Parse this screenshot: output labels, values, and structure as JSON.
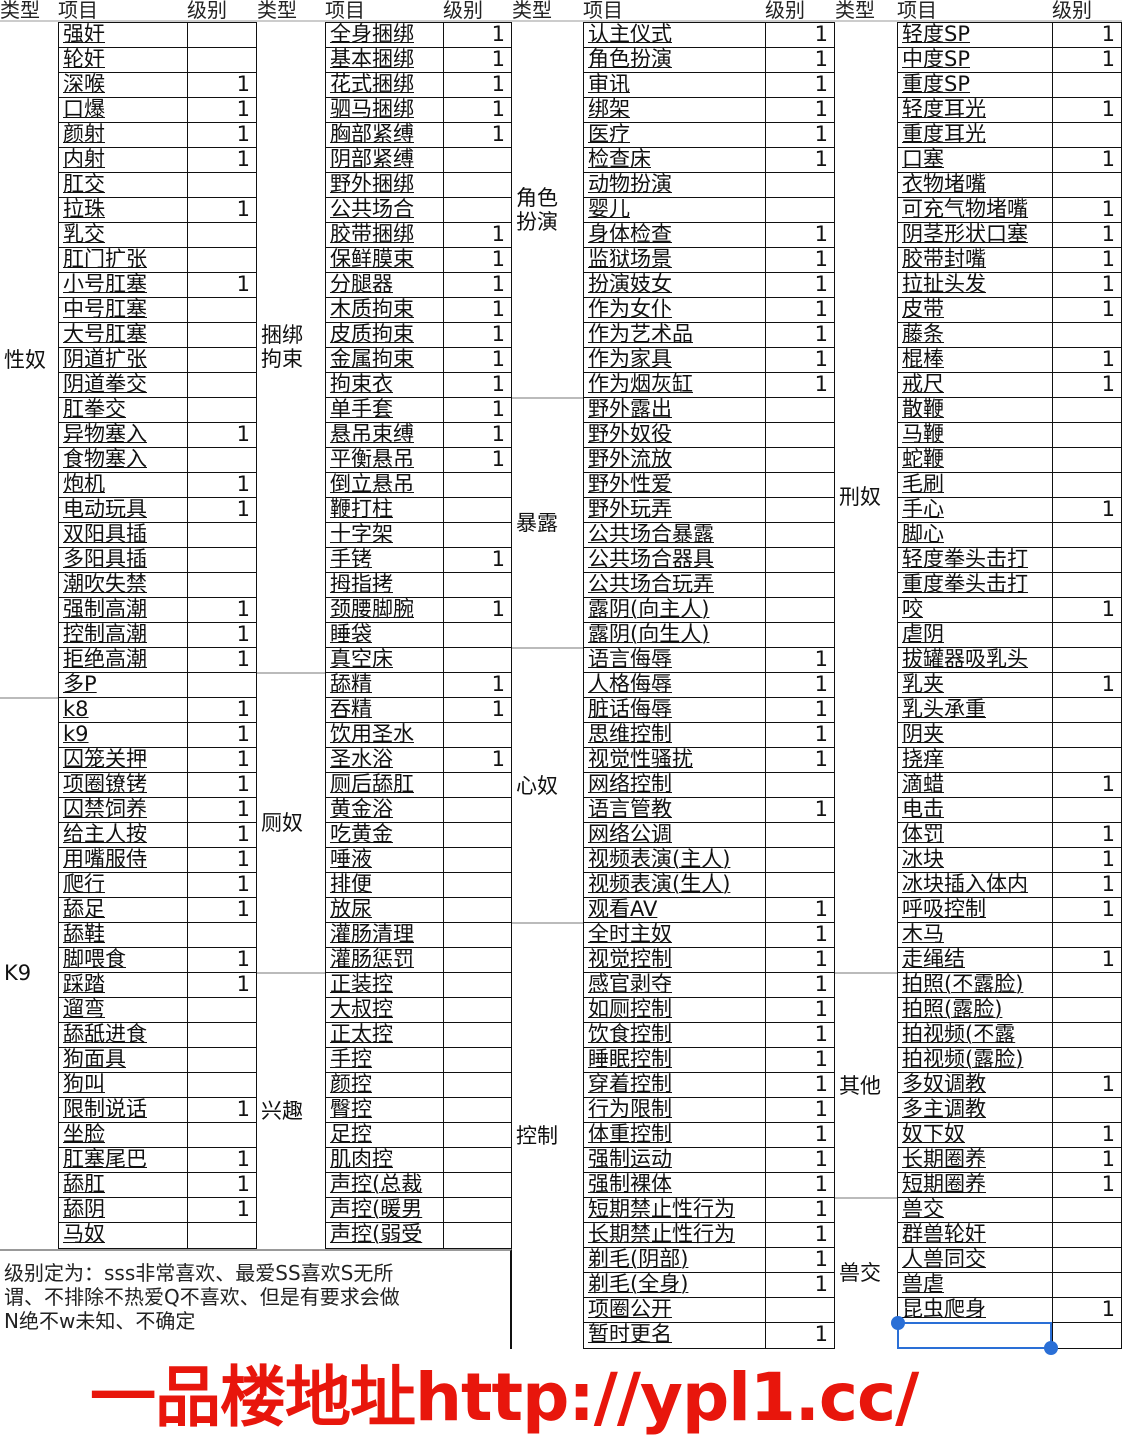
{
  "headers": {
    "type": "类型",
    "item": "项目",
    "level": "级别"
  },
  "groups": [
    {
      "categories": [
        {
          "type": "性奴",
          "items": [
            [
              "强奸",
              ""
            ],
            [
              "轮奸",
              ""
            ],
            [
              "深喉",
              "1"
            ],
            [
              "口爆",
              "1"
            ],
            [
              "颜射",
              "1"
            ],
            [
              "内射",
              "1"
            ],
            [
              "肛交",
              ""
            ],
            [
              "拉珠",
              "1"
            ],
            [
              "乳交",
              ""
            ],
            [
              "肛门扩张",
              ""
            ],
            [
              "小号肛塞",
              "1"
            ],
            [
              "中号肛塞",
              ""
            ],
            [
              "大号肛塞",
              ""
            ],
            [
              "阴道扩张",
              ""
            ],
            [
              "阴道拳交",
              ""
            ],
            [
              "肛拳交",
              ""
            ],
            [
              "异物塞入",
              "1"
            ],
            [
              "食物塞入",
              ""
            ],
            [
              "炮机",
              "1"
            ],
            [
              "电动玩具",
              "1"
            ],
            [
              "双阳具插",
              ""
            ],
            [
              "多阳具插",
              ""
            ],
            [
              "潮吹失禁",
              ""
            ],
            [
              "强制高潮",
              "1"
            ],
            [
              "控制高潮",
              "1"
            ],
            [
              "拒绝高潮",
              "1"
            ],
            [
              "多P",
              ""
            ]
          ]
        },
        {
          "type": "K9",
          "items": [
            [
              "k8",
              "1"
            ],
            [
              "k9",
              "1"
            ],
            [
              "囚笼关押",
              "1"
            ],
            [
              "项圈镣铐",
              "1"
            ],
            [
              "囚禁饲养",
              "1"
            ],
            [
              "给主人按",
              "1"
            ],
            [
              "用嘴服侍",
              "1"
            ],
            [
              "爬行",
              "1"
            ],
            [
              "舔足",
              "1"
            ],
            [
              "舔鞋",
              ""
            ],
            [
              "脚喂食",
              "1"
            ],
            [
              "踩踏",
              "1"
            ],
            [
              "遛弯",
              ""
            ],
            [
              "舔舐进食",
              ""
            ],
            [
              "狗面具",
              ""
            ],
            [
              "狗叫",
              ""
            ],
            [
              "限制说话",
              "1"
            ],
            [
              "坐脸",
              ""
            ],
            [
              "肛塞尾巴",
              "1"
            ],
            [
              "舔肛",
              "1"
            ],
            [
              "舔阴",
              "1"
            ],
            [
              "马奴",
              ""
            ]
          ]
        }
      ]
    },
    {
      "categories": [
        {
          "type": "捆绑拘束",
          "items": [
            [
              "全身捆绑",
              "1"
            ],
            [
              "基本捆绑",
              "1"
            ],
            [
              "花式捆绑",
              "1"
            ],
            [
              "驷马捆绑",
              "1"
            ],
            [
              "胸部紧缚",
              "1"
            ],
            [
              "阴部紧缚",
              ""
            ],
            [
              "野外捆绑",
              ""
            ],
            [
              "公共场合",
              ""
            ],
            [
              "胶带捆绑",
              "1"
            ],
            [
              "保鲜膜束",
              "1"
            ],
            [
              "分腿器",
              "1"
            ],
            [
              "木质拘束",
              "1"
            ],
            [
              "皮质拘束",
              "1"
            ],
            [
              "金属拘束",
              "1"
            ],
            [
              "拘束衣",
              "1"
            ],
            [
              "单手套",
              "1"
            ],
            [
              "悬吊束缚",
              "1"
            ],
            [
              "平衡悬吊",
              "1"
            ],
            [
              "倒立悬吊",
              ""
            ],
            [
              "鞭打柱",
              ""
            ],
            [
              "十字架",
              ""
            ],
            [
              "手铐",
              "1"
            ],
            [
              "拇指拷",
              ""
            ],
            [
              "颈腰脚腕",
              "1"
            ],
            [
              "睡袋",
              ""
            ],
            [
              "真空床",
              ""
            ]
          ]
        },
        {
          "type": "厕奴",
          "items": [
            [
              "舔精",
              "1"
            ],
            [
              "吞精",
              "1"
            ],
            [
              "饮用圣水",
              ""
            ],
            [
              "圣水浴",
              "1"
            ],
            [
              "厕后舔肛",
              ""
            ],
            [
              "黄金浴",
              ""
            ],
            [
              "吃黄金",
              ""
            ],
            [
              "唾液",
              ""
            ],
            [
              "排便",
              ""
            ],
            [
              "放尿",
              ""
            ],
            [
              "灌肠清理",
              ""
            ],
            [
              "灌肠惩罚",
              ""
            ]
          ]
        },
        {
          "type": "兴趣",
          "items": [
            [
              "正装控",
              ""
            ],
            [
              "大叔控",
              ""
            ],
            [
              "正太控",
              ""
            ],
            [
              "手控",
              ""
            ],
            [
              "颜控",
              ""
            ],
            [
              "臀控",
              ""
            ],
            [
              "足控",
              ""
            ],
            [
              "肌肉控",
              ""
            ],
            [
              "声控(总裁",
              ""
            ],
            [
              "声控(暖男",
              ""
            ],
            [
              "声控(弱受",
              ""
            ]
          ]
        }
      ]
    },
    {
      "categories": [
        {
          "type": "角色扮演",
          "items": [
            [
              "认主仪式",
              "1"
            ],
            [
              "角色扮演",
              "1"
            ],
            [
              "审讯",
              "1"
            ],
            [
              "绑架",
              "1"
            ],
            [
              "医疗",
              "1"
            ],
            [
              "检查床",
              "1"
            ],
            [
              "动物扮演",
              ""
            ],
            [
              "婴儿",
              ""
            ],
            [
              "身体检查",
              "1"
            ],
            [
              "监狱场景",
              "1"
            ],
            [
              "扮演妓女",
              "1"
            ],
            [
              "作为女仆",
              "1"
            ],
            [
              "作为艺术品",
              "1"
            ],
            [
              "作为家具",
              "1"
            ],
            [
              "作为烟灰缸",
              "1"
            ]
          ]
        },
        {
          "type": "暴露",
          "items": [
            [
              "野外露出",
              ""
            ],
            [
              "野外奴役",
              ""
            ],
            [
              "野外流放",
              ""
            ],
            [
              "野外性爱",
              ""
            ],
            [
              "野外玩弄",
              ""
            ],
            [
              "公共场合暴露",
              ""
            ],
            [
              "公共场合器具",
              ""
            ],
            [
              "公共场合玩弄",
              ""
            ],
            [
              "露阴(向主人)",
              ""
            ],
            [
              "露阴(向生人)",
              ""
            ]
          ]
        },
        {
          "type": "心奴",
          "items": [
            [
              "语言侮辱",
              "1"
            ],
            [
              "人格侮辱",
              "1"
            ],
            [
              "脏话侮辱",
              "1"
            ],
            [
              "思维控制",
              "1"
            ],
            [
              "视觉性骚扰",
              "1"
            ],
            [
              "网络控制",
              ""
            ],
            [
              "语言管教",
              "1"
            ],
            [
              "网络公调",
              ""
            ],
            [
              "视频表演(主人)",
              ""
            ],
            [
              "视频表演(生人)",
              ""
            ],
            [
              "观看AV",
              "1"
            ]
          ]
        },
        {
          "type": "控制",
          "items": [
            [
              "全时主奴",
              "1"
            ],
            [
              "视觉控制",
              "1"
            ],
            [
              "感官剥夺",
              "1"
            ],
            [
              "如厕控制",
              "1"
            ],
            [
              "饮食控制",
              "1"
            ],
            [
              "睡眠控制",
              "1"
            ],
            [
              "穿着控制",
              "1"
            ],
            [
              "行为限制",
              "1"
            ],
            [
              "体重控制",
              "1"
            ],
            [
              "强制运动",
              "1"
            ],
            [
              "强制裸体",
              "1"
            ],
            [
              "短期禁止性行为",
              "1"
            ],
            [
              "长期禁止性行为",
              "1"
            ],
            [
              "剃毛(阴部)",
              "1"
            ],
            [
              "剃毛(全身)",
              "1"
            ],
            [
              "项圈公开",
              ""
            ],
            [
              "暂时更名",
              "1"
            ]
          ]
        }
      ]
    },
    {
      "categories": [
        {
          "type": "刑奴",
          "items": [
            [
              "轻度SP",
              "1"
            ],
            [
              "中度SP",
              "1"
            ],
            [
              "重度SP",
              ""
            ],
            [
              "轻度耳光",
              "1"
            ],
            [
              "重度耳光",
              ""
            ],
            [
              "口塞",
              "1"
            ],
            [
              "衣物堵嘴",
              ""
            ],
            [
              "可充气物堵嘴",
              "1"
            ],
            [
              "阴茎形状口塞",
              "1"
            ],
            [
              "胶带封嘴",
              "1"
            ],
            [
              "拉扯头发",
              "1"
            ],
            [
              "皮带",
              "1"
            ],
            [
              "藤条",
              ""
            ],
            [
              "棍棒",
              "1"
            ],
            [
              "戒尺",
              "1"
            ],
            [
              "散鞭",
              ""
            ],
            [
              "马鞭",
              ""
            ],
            [
              "蛇鞭",
              ""
            ],
            [
              "毛刷",
              ""
            ],
            [
              "手心",
              "1"
            ],
            [
              "脚心",
              ""
            ],
            [
              "轻度拳头击打",
              ""
            ],
            [
              "重度拳头击打",
              ""
            ],
            [
              "咬",
              "1"
            ],
            [
              "虐阴",
              ""
            ],
            [
              "拔罐器吸乳头",
              ""
            ],
            [
              "乳夹",
              "1"
            ],
            [
              "乳头承重",
              ""
            ],
            [
              "阴夹",
              ""
            ],
            [
              "挠痒",
              ""
            ],
            [
              "滴蜡",
              "1"
            ],
            [
              "电击",
              ""
            ],
            [
              "体罚",
              "1"
            ],
            [
              "冰块",
              "1"
            ],
            [
              "冰块插入体内",
              "1"
            ],
            [
              "呼吸控制",
              "1"
            ],
            [
              "木马",
              ""
            ],
            [
              "走绳结",
              "1"
            ]
          ]
        },
        {
          "type": "其他",
          "items": [
            [
              "拍照(不露脸)",
              ""
            ],
            [
              "拍照(露脸)",
              ""
            ],
            [
              "拍视频(不露",
              ""
            ],
            [
              "拍视频(露脸)",
              ""
            ],
            [
              "多奴调教",
              "1"
            ],
            [
              "多主调教",
              ""
            ],
            [
              "奴下奴",
              "1"
            ],
            [
              "长期圈养",
              "1"
            ],
            [
              "短期圈养",
              "1"
            ]
          ]
        },
        {
          "type": "兽交",
          "items": [
            [
              "兽交",
              ""
            ],
            [
              "群兽轮奸",
              ""
            ],
            [
              "人兽同交",
              ""
            ],
            [
              "兽虐",
              ""
            ],
            [
              "昆虫爬身",
              "1"
            ],
            [
              "",
              ""
            ]
          ]
        }
      ]
    }
  ],
  "note": {
    "line1": "级别定为：sss非常喜欢、最爱SS喜欢S无所",
    "line2": "谓、不排除不热爱Q不喜欢、但是有要求会做",
    "line3": "N绝不w未知、不确定"
  },
  "watermark": "一品楼地址http://ypl1.cc/",
  "colors": {
    "watermark": "#e8160c",
    "selection": "#2a6fd6"
  }
}
